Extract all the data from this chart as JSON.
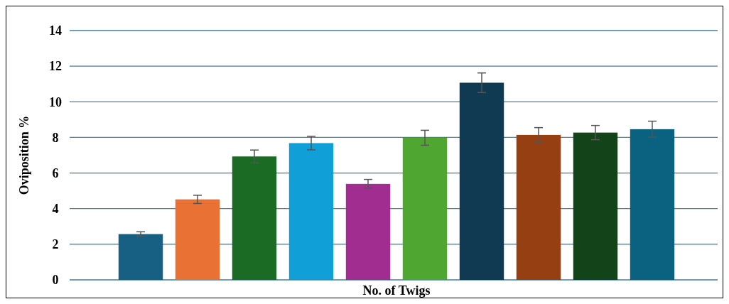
{
  "chart_data": {
    "type": "bar",
    "xlabel": "No. of Twigs",
    "ylabel": "Oviposition %",
    "categories": [
      null,
      null,
      null,
      null,
      null,
      null,
      null,
      null,
      null,
      null
    ],
    "values": [
      2.57,
      4.52,
      6.93,
      7.68,
      5.39,
      7.98,
      11.07,
      8.14,
      8.27,
      8.46
    ],
    "errors": [
      0.13,
      0.23,
      0.36,
      0.38,
      0.25,
      0.42,
      0.55,
      0.41,
      0.4,
      0.45
    ],
    "colors": [
      "#175f83",
      "#e87133",
      "#1b6b24",
      "#109fd6",
      "#a02d8f",
      "#4fa731",
      "#0f3a51",
      "#963f12",
      "#134419",
      "#0a6180"
    ],
    "ylim": [
      0,
      14
    ],
    "yticks": [
      0,
      2,
      4,
      6,
      8,
      10,
      12,
      14
    ],
    "grid": "y"
  }
}
